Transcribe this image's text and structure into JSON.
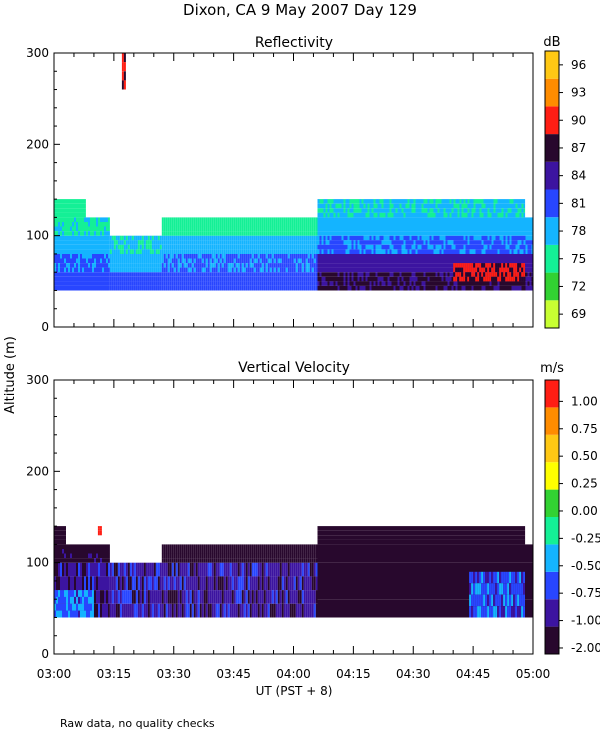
{
  "figure": {
    "title": "Dixon, CA  9 May 2007  Day 129",
    "shared_ylabel": "Altitude (m)",
    "xlabel": "UT  (PST + 8)",
    "footnote": "Raw data, no quality checks"
  },
  "chart_data": [
    {
      "type": "heatmap",
      "title": "Reflectivity",
      "xlabel": "UT  (PST + 8)",
      "ylabel": "Altitude (m)",
      "x_ticks": [
        "03:00",
        "03:15",
        "03:30",
        "03:45",
        "04:00",
        "04:15",
        "04:30",
        "04:45",
        "05:00"
      ],
      "x_range_minutes": [
        0,
        120
      ],
      "ylim": [
        0,
        300
      ],
      "y_ticks": [
        0,
        100,
        200,
        300
      ],
      "colorbar": {
        "unit": "dB",
        "ticks": [
          69,
          72,
          75,
          78,
          81,
          84,
          87,
          90,
          93,
          96
        ],
        "bins": [
          {
            "from": 67.5,
            "to": 70.5,
            "color": "#c8ff32"
          },
          {
            "from": 70.5,
            "to": 73.5,
            "color": "#32d232"
          },
          {
            "from": 73.5,
            "to": 76.5,
            "color": "#14f096"
          },
          {
            "from": 76.5,
            "to": 79.5,
            "color": "#14b4ff"
          },
          {
            "from": 79.5,
            "to": 82.5,
            "color": "#2846ff"
          },
          {
            "from": 82.5,
            "to": 85.5,
            "color": "#3c14a0"
          },
          {
            "from": 85.5,
            "to": 88.5,
            "color": "#28082d"
          },
          {
            "from": 88.5,
            "to": 91.5,
            "color": "#ff1e14"
          },
          {
            "from": 91.5,
            "to": 94.5,
            "color": "#ff8c00"
          },
          {
            "from": 94.5,
            "to": 97.5,
            "color": "#ffc814"
          }
        ]
      },
      "regions": [
        {
          "t0": 0,
          "t1": 14,
          "z0": 40,
          "z1": 60,
          "value": 81
        },
        {
          "t0": 0,
          "t1": 14,
          "z0": 60,
          "z1": 80,
          "value": 80
        },
        {
          "t0": 0,
          "t1": 14,
          "z0": 80,
          "z1": 100,
          "value": 78
        },
        {
          "t0": 0,
          "t1": 14,
          "z0": 100,
          "z1": 120,
          "value": 76
        },
        {
          "t0": 0,
          "t1": 8,
          "z0": 120,
          "z1": 140,
          "value": 75
        },
        {
          "t0": 14,
          "t1": 27,
          "z0": 40,
          "z1": 60,
          "value": 81
        },
        {
          "t0": 14,
          "t1": 27,
          "z0": 60,
          "z1": 80,
          "value": 78
        },
        {
          "t0": 14,
          "t1": 27,
          "z0": 80,
          "z1": 100,
          "value": 77
        },
        {
          "t0": 27,
          "t1": 66,
          "z0": 40,
          "z1": 60,
          "value": 81
        },
        {
          "t0": 27,
          "t1": 66,
          "z0": 60,
          "z1": 80,
          "value": 80
        },
        {
          "t0": 27,
          "t1": 66,
          "z0": 80,
          "z1": 100,
          "value": 78
        },
        {
          "t0": 27,
          "t1": 66,
          "z0": 100,
          "z1": 120,
          "value": 75
        },
        {
          "t0": 66,
          "t1": 120,
          "z0": 40,
          "z1": 60,
          "value": 86
        },
        {
          "t0": 66,
          "t1": 120,
          "z0": 60,
          "z1": 80,
          "value": 84
        },
        {
          "t0": 66,
          "t1": 120,
          "z0": 80,
          "z1": 100,
          "value": 80
        },
        {
          "t0": 66,
          "t1": 120,
          "z0": 100,
          "z1": 120,
          "value": 78
        },
        {
          "t0": 66,
          "t1": 118,
          "z0": 120,
          "z1": 140,
          "value": 77
        },
        {
          "t0": 100,
          "t1": 118,
          "z0": 50,
          "z1": 70,
          "value": 89
        },
        {
          "t0": 17,
          "t1": 18,
          "z0": 260,
          "z1": 300,
          "value": 88
        }
      ]
    },
    {
      "type": "heatmap",
      "title": "Vertical Velocity",
      "xlabel": "UT  (PST + 8)",
      "ylabel": "Altitude (m)",
      "x_ticks": [
        "03:00",
        "03:15",
        "03:30",
        "03:45",
        "04:00",
        "04:15",
        "04:30",
        "04:45",
        "05:00"
      ],
      "x_range_minutes": [
        0,
        120
      ],
      "ylim": [
        0,
        300
      ],
      "y_ticks": [
        0,
        100,
        200,
        300
      ],
      "colorbar": {
        "unit": "m/s",
        "ticks": [
          "1.00",
          "0.75",
          "0.50",
          "0.25",
          "0.00",
          "-0.25",
          "-0.50",
          "-0.75",
          "-1.00",
          "-2.00"
        ],
        "bins": [
          {
            "from": -2.0,
            "to": -1.0,
            "color": "#28082d"
          },
          {
            "from": -1.0,
            "to": -0.75,
            "color": "#3c14a0"
          },
          {
            "from": -0.75,
            "to": -0.5,
            "color": "#2846ff"
          },
          {
            "from": -0.5,
            "to": -0.25,
            "color": "#14b4ff"
          },
          {
            "from": -0.25,
            "to": 0.0,
            "color": "#14f096"
          },
          {
            "from": 0.0,
            "to": 0.25,
            "color": "#32d232"
          },
          {
            "from": 0.25,
            "to": 0.5,
            "color": "#ffff00"
          },
          {
            "from": 0.5,
            "to": 0.75,
            "color": "#ffc814"
          },
          {
            "from": 0.75,
            "to": 1.0,
            "color": "#ff8c00"
          },
          {
            "from": 1.0,
            "to": 1.25,
            "color": "#ff1e14"
          }
        ]
      },
      "regions": [
        {
          "t0": 0,
          "t1": 14,
          "z0": 40,
          "z1": 100,
          "value": -0.9
        },
        {
          "t0": 0,
          "t1": 14,
          "z0": 100,
          "z1": 120,
          "value": -1.2
        },
        {
          "t0": 0,
          "t1": 3,
          "z0": 120,
          "z1": 140,
          "value": -1.2
        },
        {
          "t0": 14,
          "t1": 27,
          "z0": 40,
          "z1": 100,
          "value": -0.85
        },
        {
          "t0": 27,
          "t1": 66,
          "z0": 40,
          "z1": 100,
          "value": -0.9
        },
        {
          "t0": 27,
          "t1": 66,
          "z0": 100,
          "z1": 120,
          "value": -1.3
        },
        {
          "t0": 66,
          "t1": 120,
          "z0": 40,
          "z1": 120,
          "value": -1.5
        },
        {
          "t0": 66,
          "t1": 118,
          "z0": 120,
          "z1": 140,
          "value": -1.5
        },
        {
          "t0": 104,
          "t1": 118,
          "z0": 40,
          "z1": 90,
          "value": -0.6
        },
        {
          "t0": 0,
          "t1": 10,
          "z0": 40,
          "z1": 70,
          "value": -0.55
        },
        {
          "t0": 11,
          "t1": 12,
          "z0": 130,
          "z1": 140,
          "value": 1.1
        }
      ]
    }
  ]
}
